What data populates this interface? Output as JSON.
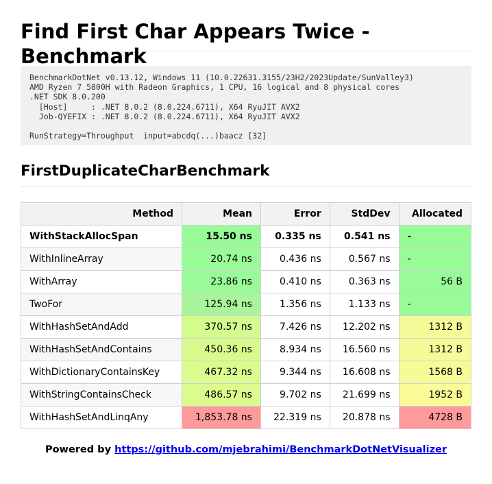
{
  "title": "Find First Char Appears Twice - Benchmark",
  "environment": [
    "BenchmarkDotNet v0.13.12, Windows 11 (10.0.22631.3155/23H2/2023Update/SunValley3)",
    "AMD Ryzen 7 5800H with Radeon Graphics, 1 CPU, 16 logical and 8 physical cores",
    ".NET SDK 8.0.200",
    "  [Host]     : .NET 8.0.2 (8.0.224.6711), X64 RyuJIT AVX2",
    "  Job-QYEFIX : .NET 8.0.2 (8.0.224.6711), X64 RyuJIT AVX2",
    "",
    "RunStrategy=Throughput  input=abcdq(...)baacz [32]"
  ],
  "section_title": "FirstDuplicateCharBenchmark",
  "table": {
    "headers": [
      "Method",
      "Mean",
      "Error",
      "StdDev",
      "Allocated"
    ],
    "rows": [
      {
        "method": "WithStackAllocSpan",
        "mean": "15.50 ns",
        "error": "0.335 ns",
        "stddev": "0.541 ns",
        "allocated": "-",
        "mean_color": "#98fb98",
        "alloc_color": "#98fb98",
        "bold": true
      },
      {
        "method": "WithInlineArray",
        "mean": "20.74 ns",
        "error": "0.436 ns",
        "stddev": "0.567 ns",
        "allocated": "-",
        "mean_color": "#98fb98",
        "alloc_color": "#98fb98",
        "bold": false
      },
      {
        "method": "WithArray",
        "mean": "23.86 ns",
        "error": "0.410 ns",
        "stddev": "0.363 ns",
        "allocated": "56 B",
        "mean_color": "#98fb98",
        "alloc_color": "#98fb98",
        "bold": false
      },
      {
        "method": "TwoFor",
        "mean": "125.94 ns",
        "error": "1.356 ns",
        "stddev": "1.133 ns",
        "allocated": "-",
        "mean_color": "#a9f59b",
        "alloc_color": "#98fb98",
        "bold": false
      },
      {
        "method": "WithHashSetAndAdd",
        "mean": "370.57 ns",
        "error": "7.426 ns",
        "stddev": "12.202 ns",
        "allocated": "1312 B",
        "mean_color": "#d4fb8e",
        "alloc_color": "#f4fb98",
        "bold": false
      },
      {
        "method": "WithHashSetAndContains",
        "mean": "450.36 ns",
        "error": "8.934 ns",
        "stddev": "16.560 ns",
        "allocated": "1312 B",
        "mean_color": "#d8fb8e",
        "alloc_color": "#f4fb98",
        "bold": false
      },
      {
        "method": "WithDictionaryContainsKey",
        "mean": "467.32 ns",
        "error": "9.344 ns",
        "stddev": "16.608 ns",
        "allocated": "1568 B",
        "mean_color": "#dafb8e",
        "alloc_color": "#f6fb98",
        "bold": false
      },
      {
        "method": "WithStringContainsCheck",
        "mean": "486.57 ns",
        "error": "9.702 ns",
        "stddev": "21.699 ns",
        "allocated": "1952 B",
        "mean_color": "#dcfb8e",
        "alloc_color": "#fafc98",
        "bold": false
      },
      {
        "method": "WithHashSetAndLinqAny",
        "mean": "1,853.78 ns",
        "error": "22.319 ns",
        "stddev": "20.878 ns",
        "allocated": "4728 B",
        "mean_color": "#ff9a9a",
        "alloc_color": "#ff9a9a",
        "bold": false
      }
    ]
  },
  "footer": {
    "prefix": "Powered by ",
    "link_text": "https://github.com/mjebrahimi/BenchmarkDotNetVisualizer"
  }
}
